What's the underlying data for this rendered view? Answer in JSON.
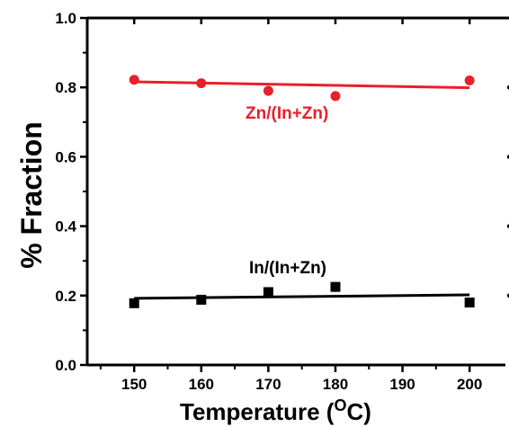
{
  "chart_data": {
    "type": "scatter",
    "xlabel": "Temperature (",
    "xlabel_superscript": "O",
    "xlabel_suffix": "C)",
    "ylabel": "% Fraction",
    "xlim": [
      143,
      204
    ],
    "ylim": [
      0.0,
      1.0
    ],
    "x_ticks": [
      "150",
      "160",
      "170",
      "180",
      "190",
      "200"
    ],
    "y_ticks": [
      "0.0",
      "0.2",
      "0.4",
      "0.6",
      "0.8",
      "1.0"
    ],
    "grid": false,
    "series": [
      {
        "name": "Zn/(In+Zn)",
        "color": "#e8202a",
        "marker": "circle",
        "x": [
          150,
          160,
          170,
          180,
          200
        ],
        "y": [
          0.822,
          0.812,
          0.79,
          0.775,
          0.82
        ],
        "fit": [
          [
            150,
            0.816
          ],
          [
            200,
            0.799
          ]
        ]
      },
      {
        "name": "In/(In+Zn)",
        "color": "#000000",
        "marker": "square",
        "x": [
          150,
          160,
          170,
          180,
          200
        ],
        "y": [
          0.178,
          0.188,
          0.21,
          0.225,
          0.18
        ],
        "fit": [
          [
            150,
            0.192
          ],
          [
            200,
            0.202
          ]
        ]
      }
    ],
    "annotations": [
      {
        "text": "Zn/(In+Zn)",
        "series": 0
      },
      {
        "text": "In/(In+Zn)",
        "series": 1
      }
    ]
  }
}
